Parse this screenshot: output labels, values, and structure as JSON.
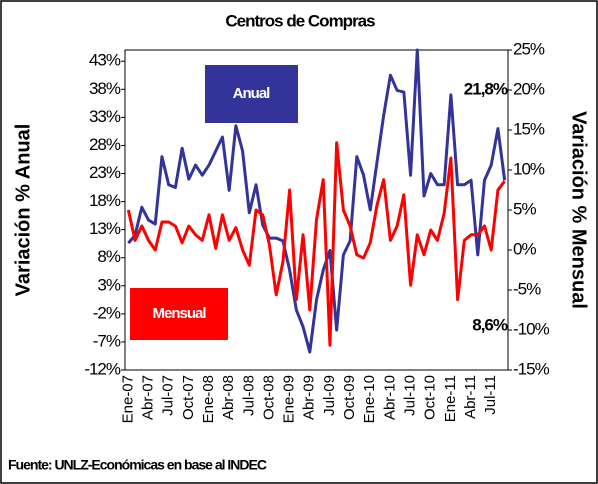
{
  "chart_data": {
    "type": "line",
    "title": "Centros de Compras",
    "ylabel": "Variación % Anual",
    "y2label": "Variación % Mensual",
    "source": "Fuente: UNLZ-Económicas en base al INDEC",
    "categories": [
      "Ene-07",
      null,
      null,
      "Abr-07",
      null,
      null,
      "Jul-07",
      null,
      null,
      "Oct-07",
      null,
      null,
      "Ene-08",
      null,
      null,
      "Abr-08",
      null,
      null,
      "Jul-08",
      null,
      null,
      "Oct-08",
      null,
      null,
      "Ene-09",
      null,
      null,
      "Abr-09",
      null,
      null,
      "Jul-09",
      null,
      null,
      "Oct-09",
      null,
      null,
      "Ene-10",
      null,
      null,
      "Abr-10",
      null,
      null,
      "Jul-10",
      null,
      null,
      "Oct-10",
      null,
      null,
      "Ene-11",
      null,
      null,
      "Abr-11",
      null,
      null,
      "Jul-11",
      null,
      null
    ],
    "series": [
      {
        "name": "Anual",
        "color": "#333399",
        "axis": "y",
        "values": [
          10.6,
          12,
          17,
          14.7,
          14,
          26,
          21,
          20.5,
          27.5,
          22,
          24.5,
          22.7,
          24.5,
          27,
          29.5,
          20,
          31.5,
          27,
          16,
          21,
          13.8,
          11.5,
          11.5,
          11,
          5.8,
          -1.3,
          -4.3,
          -8.8,
          0.5,
          5.8,
          9.3,
          -4.9,
          8.5,
          11,
          26,
          22.7,
          16.5,
          25,
          33.4,
          40.5,
          37.8,
          37.5,
          22.7,
          45,
          19,
          23,
          21,
          21,
          37,
          21,
          21,
          21.8,
          8.5,
          21.8,
          24.5,
          31,
          21.8
        ]
      },
      {
        "name": "Mensual",
        "color": "#ff0000",
        "axis": "y2",
        "values": [
          5,
          1.2,
          3,
          1.2,
          0,
          3.5,
          3.5,
          3,
          0.9,
          3,
          1.9,
          1.2,
          4.4,
          0.2,
          4.4,
          1.2,
          2.8,
          0,
          -1.9,
          5,
          4.4,
          0.6,
          -5.6,
          -1.5,
          7.5,
          -6.2,
          1.9,
          -7.5,
          3.8,
          8.8,
          -11.9,
          13.4,
          5,
          3,
          -0.6,
          -1,
          0.9,
          5.6,
          8.8,
          1.2,
          3,
          6.9,
          -4.4,
          1.9,
          -0.6,
          2.5,
          1.2,
          4.6,
          11.5,
          -6.2,
          1.2,
          1.9,
          1.9,
          3,
          0,
          7.5,
          8.6
        ]
      }
    ],
    "annotations": [
      "21,8%",
      "8,6%"
    ],
    "ylim": [
      -12,
      45
    ],
    "yticks": [
      {
        "value": -12,
        "label": "-12%"
      },
      {
        "value": -7,
        "label": "-7%"
      },
      {
        "value": -2,
        "label": "-2%"
      },
      {
        "value": 3,
        "label": "3%"
      },
      {
        "value": 8,
        "label": "8%"
      },
      {
        "value": 13,
        "label": "13%"
      },
      {
        "value": 18,
        "label": "18%"
      },
      {
        "value": 23,
        "label": "23%"
      },
      {
        "value": 28,
        "label": "28%"
      },
      {
        "value": 33,
        "label": "33%"
      },
      {
        "value": 38,
        "label": "38%"
      },
      {
        "value": 43,
        "label": "43%"
      }
    ],
    "y2lim": [
      -15,
      25
    ],
    "y2ticks": [
      {
        "value": -15,
        "label": "-15%"
      },
      {
        "value": -10,
        "label": "-10%"
      },
      {
        "value": -5,
        "label": "-5%"
      },
      {
        "value": 0,
        "label": "0%"
      },
      {
        "value": 5,
        "label": "5%"
      },
      {
        "value": 10,
        "label": "10%"
      },
      {
        "value": 15,
        "label": "15%"
      },
      {
        "value": 20,
        "label": "20%"
      },
      {
        "value": 25,
        "label": "25%"
      }
    ],
    "grid": false
  }
}
